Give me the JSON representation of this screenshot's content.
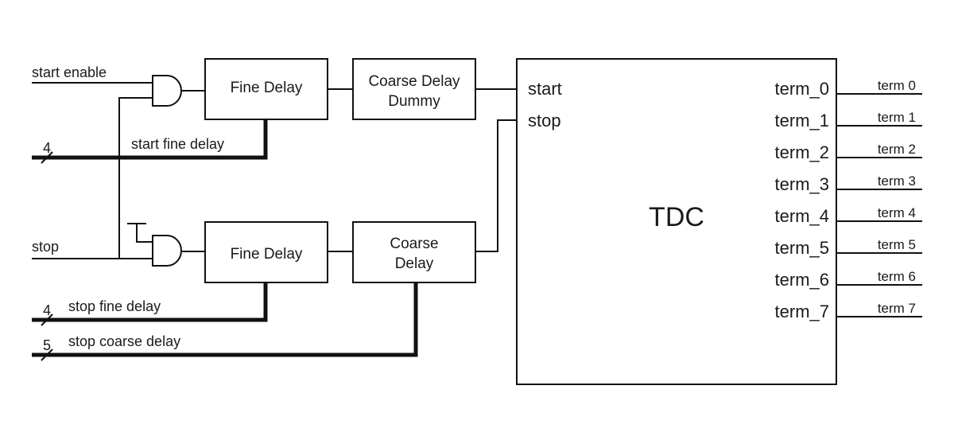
{
  "inputs": {
    "start_enable": "start enable",
    "stop": "stop",
    "start_fine_delay": "start fine delay",
    "stop_fine_delay": "stop fine delay",
    "stop_coarse_delay": "stop coarse delay",
    "bus_width_start_fine": "4",
    "bus_width_stop_fine": "4",
    "bus_width_stop_coarse": "5"
  },
  "blocks": {
    "fine_delay_top": "Fine Delay",
    "coarse_delay_dummy_line1": "Coarse Delay",
    "coarse_delay_dummy_line2": "Dummy",
    "fine_delay_bottom": "Fine Delay",
    "coarse_delay_line1": "Coarse",
    "coarse_delay_line2": "Delay"
  },
  "tdc": {
    "title": "TDC",
    "start_port": "start",
    "stop_port": "stop",
    "terms": [
      "term_0",
      "term_1",
      "term_2",
      "term_3",
      "term_4",
      "term_5",
      "term_6",
      "term_7"
    ]
  },
  "outputs": [
    "term 0",
    "term 1",
    "term 2",
    "term 3",
    "term 4",
    "term 5",
    "term 6",
    "term 7"
  ]
}
